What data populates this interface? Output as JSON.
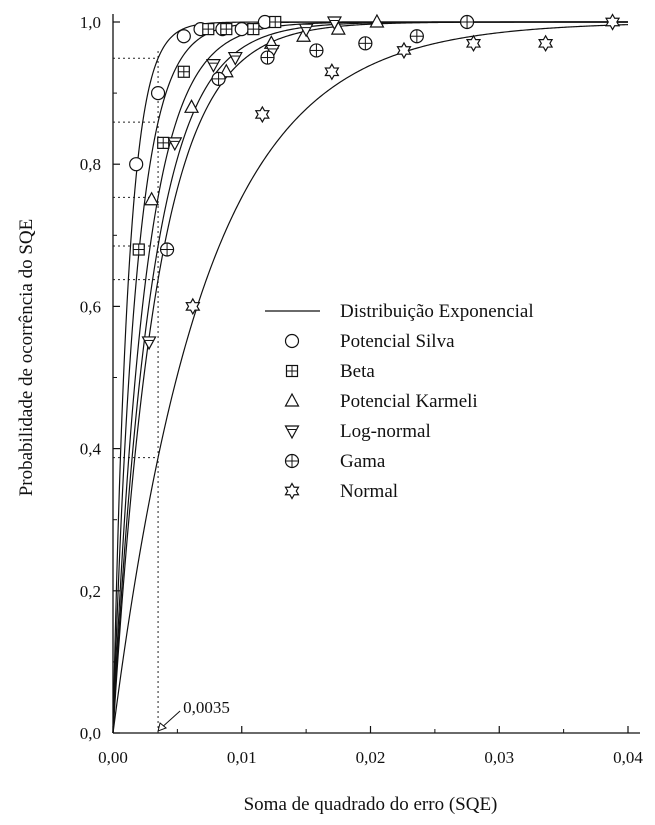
{
  "chart_data": {
    "type": "scatter",
    "xlabel": "Soma de quadrado do erro (SQE)",
    "ylabel": "Probabilidade de ocorrência do SQE",
    "xlim": [
      0,
      0.04
    ],
    "ylim": [
      0,
      1.0
    ],
    "x_ticks": [
      "0,00",
      "0,01",
      "0,02",
      "0,03",
      "0,04"
    ],
    "x_tick_values": [
      0,
      0.01,
      0.02,
      0.03,
      0.04
    ],
    "y_ticks": [
      "0,0",
      "0,2",
      "0,4",
      "0,6",
      "0,8",
      "1,0"
    ],
    "y_tick_values": [
      0,
      0.2,
      0.4,
      0.6,
      0.8,
      1.0
    ],
    "legend_position": "center-right",
    "curve_label": "Distribuição Exponencial",
    "annotation": {
      "text": "0,0035",
      "x": 0.0035,
      "y": 0
    },
    "series": [
      {
        "name": "Potencial Silva",
        "marker": "circle",
        "curve_rate": 850,
        "x": [
          0.0018,
          0.0035,
          0.0055,
          0.0068,
          0.0085,
          0.01,
          0.0118
        ],
        "y": [
          0.8,
          0.9,
          0.98,
          0.99,
          0.99,
          0.99,
          1.0
        ]
      },
      {
        "name": "Beta",
        "marker": "boxplus",
        "curve_rate": 560,
        "x": [
          0.002,
          0.0039,
          0.0055,
          0.0074,
          0.0088,
          0.0109,
          0.0126
        ],
        "y": [
          0.68,
          0.83,
          0.93,
          0.99,
          0.99,
          0.99,
          1.0
        ]
      },
      {
        "name": "Potencial Karmeli",
        "marker": "triangle-up",
        "curve_rate": 400,
        "x": [
          0.003,
          0.0061,
          0.0088,
          0.0123,
          0.0148,
          0.0175,
          0.0205
        ],
        "y": [
          0.75,
          0.88,
          0.93,
          0.97,
          0.98,
          0.99,
          1.0
        ]
      },
      {
        "name": "Log-normal",
        "marker": "triangle-down",
        "curve_rate": 330,
        "x": [
          0.0028,
          0.0048,
          0.0078,
          0.0095,
          0.0124,
          0.015,
          0.0172
        ],
        "y": [
          0.55,
          0.83,
          0.94,
          0.95,
          0.96,
          0.99,
          1.0
        ]
      },
      {
        "name": "Gama",
        "marker": "circle-plus",
        "curve_rate": 290,
        "x": [
          0.0042,
          0.0082,
          0.012,
          0.0158,
          0.0196,
          0.0236,
          0.0275
        ],
        "y": [
          0.68,
          0.92,
          0.95,
          0.96,
          0.97,
          0.98,
          1.0
        ]
      },
      {
        "name": "Normal",
        "marker": "star",
        "curve_rate": 140,
        "x": [
          0.0062,
          0.0116,
          0.017,
          0.0226,
          0.028,
          0.0336,
          0.0388
        ],
        "y": [
          0.6,
          0.87,
          0.93,
          0.96,
          0.97,
          0.97,
          1.0
        ]
      }
    ]
  }
}
